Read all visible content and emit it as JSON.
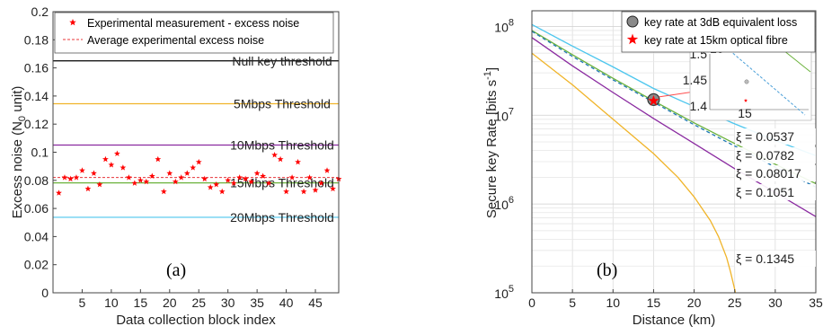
{
  "chart_data": [
    {
      "type": "scatter",
      "panel_label": "(a)",
      "xlabel": "Data collection block index",
      "ylabel": "Excess noise (N",
      "ylabel_sub": "0",
      "ylabel_tail": " unit)",
      "xlim": [
        0,
        49
      ],
      "ylim": [
        0,
        0.2
      ],
      "xticks": [
        5,
        10,
        15,
        20,
        25,
        30,
        35,
        40,
        45
      ],
      "yticks": [
        0,
        0.02,
        0.04,
        0.06,
        0.08,
        0.1,
        0.12,
        0.14,
        0.16,
        0.18,
        0.2
      ],
      "ytick_labels": [
        "0",
        "0.02",
        "0.04",
        "0.06",
        "0.08",
        "0.1",
        "0.12",
        "0.14",
        "0.16",
        "0.18",
        "0.2"
      ],
      "legend": {
        "position": "top",
        "entries": [
          "Experimental measurement - excess noise",
          "Average experimental excess noise"
        ]
      },
      "series": [
        {
          "name": "Experimental measurement - excess noise",
          "marker": "star",
          "color": "#ff0000",
          "x": [
            1,
            2,
            3,
            4,
            5,
            6,
            7,
            8,
            9,
            10,
            11,
            12,
            13,
            14,
            15,
            16,
            17,
            18,
            19,
            20,
            21,
            22,
            23,
            24,
            25,
            26,
            27,
            28,
            29,
            30,
            31,
            32,
            33,
            34,
            35,
            36,
            37,
            38,
            39,
            40,
            41,
            42,
            43,
            44,
            45,
            46,
            47,
            48,
            49
          ],
          "y": [
            0.071,
            0.082,
            0.081,
            0.082,
            0.087,
            0.074,
            0.085,
            0.077,
            0.095,
            0.091,
            0.099,
            0.089,
            0.082,
            0.078,
            0.08,
            0.079,
            0.083,
            0.095,
            0.072,
            0.085,
            0.079,
            0.082,
            0.085,
            0.089,
            0.093,
            0.081,
            0.075,
            0.077,
            0.072,
            0.08,
            0.078,
            0.082,
            0.081,
            0.079,
            0.085,
            0.083,
            0.078,
            0.098,
            0.095,
            0.072,
            0.082,
            0.093,
            0.072,
            0.082,
            0.073,
            0.078,
            0.087,
            0.074,
            0.081
          ]
        }
      ],
      "hlines": [
        {
          "name": "Average experimental excess noise",
          "y": 0.082,
          "color": "#e8343a",
          "dash": true,
          "label": ""
        },
        {
          "name": "Null key threshold",
          "y": 0.165,
          "color": "#000000",
          "label": "Null key threshold"
        },
        {
          "name": "5Mbps Threshold",
          "y": 0.1345,
          "color": "#f0b429",
          "label": "5Mbps Threshold"
        },
        {
          "name": "10Mbps Threshold",
          "y": 0.1051,
          "color": "#8a2aa0",
          "label": "10Mbps Threshold"
        },
        {
          "name": "15Mbps Threshold",
          "y": 0.0782,
          "color": "#6bb23c",
          "label": "15Mbps Threshold"
        },
        {
          "name": "20Mbps Threshold",
          "y": 0.0537,
          "color": "#4cc6ee",
          "label": "20Mbps Threshold"
        }
      ]
    },
    {
      "type": "line",
      "panel_label": "(b)",
      "xlabel": "Distance (km)",
      "ylabel": "Secure key Rate [bits s",
      "ylabel_sup": "-1",
      "ylabel_tail": "]",
      "xlim": [
        0,
        35
      ],
      "ylim": [
        100000,
        150000000
      ],
      "yscale": "log",
      "xticks": [
        0,
        5,
        10,
        15,
        20,
        25,
        30,
        35
      ],
      "ytick_exponents": [
        5,
        6,
        7,
        8
      ],
      "grid": true,
      "legend": {
        "position": "top-right",
        "entries": [
          "key rate at 3dB equivalent loss",
          "key rate at 15km optical fibre"
        ]
      },
      "series": [
        {
          "label": "ξ = 0.0537",
          "xi": 0.0537,
          "color": "#4cc6ee",
          "x": [
            0,
            5,
            10,
            15,
            20,
            25,
            30,
            35
          ],
          "y": [
            105000000,
            60000000,
            35000000,
            20000000,
            12500000,
            8000000,
            5200000,
            3500000
          ]
        },
        {
          "label": "ξ = 0.0782",
          "xi": 0.0782,
          "color": "#6bb23c",
          "x": [
            0,
            5,
            10,
            15,
            20,
            25,
            30,
            35
          ],
          "y": [
            90000000,
            48000000,
            26000000,
            14500000,
            8200000,
            4800000,
            2800000,
            1700000
          ]
        },
        {
          "label": "ξ = 0.08017",
          "xi": 0.08017,
          "color": "#1f78b4",
          "dashed": true,
          "x": [
            0,
            5,
            10,
            15,
            20,
            25,
            30,
            35
          ],
          "y": [
            88000000,
            46000000,
            25000000,
            14000000,
            7800000,
            4500000,
            2600000,
            1550000
          ]
        },
        {
          "label": "ξ = 0.1051",
          "xi": 0.1051,
          "color": "#8a2aa0",
          "x": [
            0,
            5,
            10,
            15,
            20,
            25,
            30,
            35
          ],
          "y": [
            75000000,
            36000000,
            18000000,
            9200000,
            4800000,
            2500000,
            1350000,
            720000
          ]
        },
        {
          "label": "ξ = 0.1345",
          "xi": 0.1345,
          "color": "#f0b429",
          "x": [
            0,
            5,
            10,
            15,
            18,
            20,
            22,
            23,
            24,
            24.5,
            25.1
          ],
          "y": [
            50000000,
            22000000,
            9000000,
            3700000,
            2000000,
            1200000,
            650000,
            430000,
            250000,
            170000,
            100000
          ]
        }
      ],
      "points": [
        {
          "name": "key rate at 3dB equivalent loss",
          "x": 15,
          "y": 15000000,
          "marker": "circle",
          "color": "#888888"
        },
        {
          "name": "key rate at 15km optical fibre",
          "x": 15,
          "y": 14500000,
          "marker": "star",
          "color": "#ff0000"
        }
      ],
      "inset": {
        "yexp_label": "10",
        "yexp_sup": "7",
        "ytick_labels": [
          "1.5",
          "1.45",
          "1.4"
        ],
        "xtick_label": "15"
      }
    }
  ]
}
